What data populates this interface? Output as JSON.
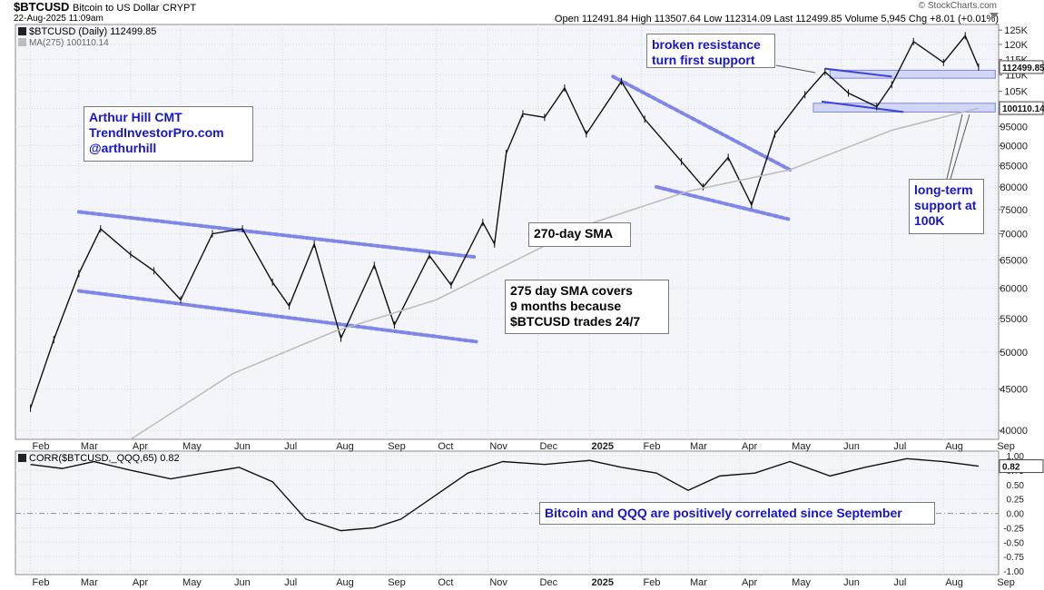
{
  "header": {
    "symbol": "$BTCUSD",
    "name": "Bitcoin to US Dollar",
    "exchange": "CRYPT",
    "date": "22-Aug-2025 11:09am",
    "ohlc": "Open 112491.84  High 113507.64  Low 112314.09  Last 112499.85  Volume 5,945  Chg +8.01 (+0.01%)",
    "brand": "© StockCharts.com"
  },
  "legend": {
    "price": "$BTCUSD (Daily) 112499.85",
    "ma": "MA(275) 100110.14",
    "corr": "CORR($BTCUSD,_QQQ,65) 0.82"
  },
  "annotations": {
    "author": [
      "Arthur Hill CMT",
      "TrendInvestorPro.com",
      "@arthurhill"
    ],
    "resistance": [
      "broken resistance",
      "turn first support"
    ],
    "sma270": "270-day SMA",
    "sma275": [
      "275 day SMA covers",
      "9 months because",
      "$BTCUSD trades 24/7"
    ],
    "longterm": [
      "long-term",
      "support at",
      "100K"
    ],
    "correl": "Bitcoin and QQQ are positively correlated since September"
  },
  "price_tags": {
    "last": "112499.85",
    "ma": "100110.14",
    "corr": "0.82"
  },
  "chart_data": [
    {
      "type": "line",
      "title": "$BTCUSD (Daily)",
      "subtitle": "Bitcoin to US Dollar",
      "x_axis_labels": [
        "Feb",
        "Mar",
        "Apr",
        "May",
        "Jun",
        "Jul",
        "Aug",
        "Sep",
        "Oct",
        "Nov",
        "Dec",
        "2025",
        "Feb",
        "Mar",
        "Apr",
        "May",
        "Jun",
        "Jul",
        "Aug",
        "Sep"
      ],
      "y_ticks": [
        40000,
        45000,
        50000,
        55000,
        60000,
        65000,
        70000,
        75000,
        80000,
        85000,
        90000,
        95000,
        "100K",
        "105K",
        "110K",
        "115K",
        "120K",
        "125K"
      ],
      "ylim": [
        39000,
        127000
      ],
      "log_scale": true,
      "series": [
        {
          "name": "$BTCUSD",
          "x": [
            "2024-02-01",
            "2024-02-15",
            "2024-03-01",
            "2024-03-14",
            "2024-04-01",
            "2024-04-15",
            "2024-05-01",
            "2024-05-20",
            "2024-06-07",
            "2024-06-25",
            "2024-07-05",
            "2024-07-20",
            "2024-08-05",
            "2024-08-25",
            "2024-09-06",
            "2024-09-27",
            "2024-10-10",
            "2024-10-29",
            "2024-11-05",
            "2024-11-12",
            "2024-11-22",
            "2024-12-05",
            "2024-12-17",
            "2024-12-30",
            "2025-01-20",
            "2025-02-03",
            "2025-02-25",
            "2025-03-10",
            "2025-03-25",
            "2025-04-08",
            "2025-04-22",
            "2025-05-10",
            "2025-05-22",
            "2025-06-05",
            "2025-06-22",
            "2025-07-01",
            "2025-07-14",
            "2025-08-01",
            "2025-08-14",
            "2025-08-22"
          ],
          "values": [
            42600,
            51800,
            62500,
            71000,
            66000,
            63000,
            58000,
            70000,
            71000,
            61000,
            57000,
            68000,
            52000,
            64000,
            54000,
            65800,
            60500,
            72300,
            68000,
            88000,
            98500,
            97500,
            106000,
            93000,
            108000,
            97000,
            86000,
            80000,
            87000,
            76000,
            93000,
            104000,
            111000,
            104500,
            100500,
            107000,
            121000,
            114000,
            123000,
            112500
          ]
        },
        {
          "name": "MA(275)",
          "x": [
            "2024-04-01",
            "2024-06-01",
            "2024-08-01",
            "2024-10-01",
            "2024-12-01",
            "2025-01-01",
            "2025-03-01",
            "2025-05-01",
            "2025-07-01",
            "2025-08-22"
          ],
          "values": [
            39000,
            47000,
            53000,
            58000,
            67000,
            72000,
            79000,
            84000,
            94000,
            100110
          ]
        }
      ]
    },
    {
      "type": "line",
      "title": "CORR($BTCUSD,_QQQ,65)",
      "x_axis_labels": [
        "Feb",
        "Mar",
        "Apr",
        "May",
        "Jun",
        "Jul",
        "Aug",
        "Sep",
        "Oct",
        "Nov",
        "Dec",
        "2025",
        "Feb",
        "Mar",
        "Apr",
        "May",
        "Jun",
        "Jul",
        "Aug",
        "Sep"
      ],
      "y_ticks": [
        1.0,
        0.75,
        0.5,
        0.25,
        0.0,
        -0.25,
        -0.5,
        -0.75,
        -1.0
      ],
      "ylim": [
        -1.0,
        1.05
      ],
      "series": [
        {
          "name": "CORR",
          "x": [
            "2024-02-01",
            "2024-02-20",
            "2024-03-10",
            "2024-04-01",
            "2024-04-25",
            "2024-05-15",
            "2024-06-05",
            "2024-06-25",
            "2024-07-15",
            "2024-08-05",
            "2024-08-25",
            "2024-09-10",
            "2024-09-30",
            "2024-10-20",
            "2024-11-10",
            "2024-12-05",
            "2025-01-01",
            "2025-01-20",
            "2025-02-10",
            "2025-03-01",
            "2025-03-20",
            "2025-04-10",
            "2025-05-01",
            "2025-05-25",
            "2025-06-15",
            "2025-07-10",
            "2025-08-01",
            "2025-08-22"
          ],
          "values": [
            0.85,
            0.78,
            0.9,
            0.75,
            0.6,
            0.7,
            0.8,
            0.55,
            -0.1,
            -0.3,
            -0.25,
            -0.1,
            0.3,
            0.7,
            0.9,
            0.85,
            0.92,
            0.8,
            0.7,
            0.4,
            0.65,
            0.7,
            0.9,
            0.65,
            0.8,
            0.95,
            0.9,
            0.82
          ]
        }
      ]
    }
  ]
}
